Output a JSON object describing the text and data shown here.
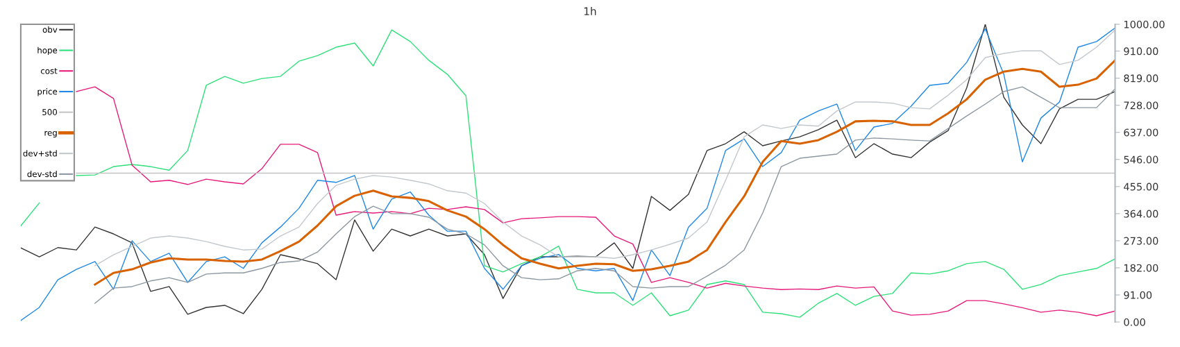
{
  "chart_data": {
    "type": "line",
    "title": "1h",
    "categories": [
      null,
      null,
      null,
      null,
      null,
      null,
      null,
      null,
      null,
      null,
      null,
      null,
      null,
      null,
      null,
      null,
      null,
      null,
      null,
      null,
      null,
      null,
      null,
      null,
      null,
      null,
      null,
      null,
      null,
      null,
      null,
      null,
      null,
      null,
      null,
      null,
      null,
      null,
      null,
      null,
      null,
      null,
      null,
      null,
      null,
      null,
      null,
      null,
      null,
      null,
      null,
      null,
      null,
      null,
      null,
      null,
      null,
      null,
      null,
      null
    ],
    "series": [
      {
        "name": "obv",
        "color": "#333333",
        "values": [
          249,
          219,
          250,
          242,
          319,
          296,
          266,
          103,
          119,
          26,
          49,
          56,
          28,
          110,
          226,
          212,
          196,
          142,
          343,
          238,
          312,
          289,
          312,
          289,
          296,
          226,
          79,
          189,
          219,
          219,
          221,
          219,
          266,
          180,
          422,
          375,
          429,
          576,
          599,
          639,
          592,
          608,
          622,
          646,
          678,
          552,
          599,
          564,
          552,
          604,
          643,
          786,
          1000,
          755,
          662,
          599,
          716,
          748,
          748,
          774
        ]
      },
      {
        "name": "hope",
        "color": "#2ee07a",
        "values": [
          323,
          400,
          null,
          492,
          494,
          522,
          529,
          522,
          510,
          576,
          795,
          825,
          802,
          818,
          825,
          876,
          895,
          923,
          937,
          860,
          981,
          942,
          879,
          832,
          760,
          189,
          168,
          196,
          219,
          255,
          110,
          98,
          98,
          56,
          98,
          21,
          40,
          126,
          138,
          126,
          33,
          28,
          16,
          63,
          96,
          56,
          86,
          96,
          165,
          161,
          172,
          196,
          203,
          177,
          110,
          126,
          156,
          168,
          180,
          212
        ]
      },
      {
        "name": "cost",
        "color": "#e6197a",
        "values": [
          null,
          null,
          null,
          774,
          790,
          751,
          527,
          471,
          476,
          462,
          480,
          471,
          464,
          515,
          597,
          597,
          569,
          359,
          371,
          366,
          371,
          364,
          382,
          378,
          387,
          378,
          333,
          347,
          350,
          354,
          354,
          352,
          289,
          262,
          133,
          149,
          133,
          114,
          130,
          121,
          114,
          109,
          111,
          109,
          121,
          114,
          118,
          37,
          23,
          26,
          37,
          72,
          72,
          61,
          48,
          33,
          40,
          33,
          21,
          37
        ]
      },
      {
        "name": "price",
        "color": "#1e88e5",
        "values": [
          5,
          49,
          142,
          177,
          203,
          110,
          273,
          203,
          231,
          133,
          203,
          219,
          180,
          266,
          319,
          382,
          476,
          469,
          492,
          312,
          413,
          437,
          359,
          305,
          305,
          180,
          110,
          189,
          214,
          227,
          180,
          172,
          180,
          72,
          242,
          156,
          319,
          382,
          576,
          615,
          522,
          569,
          678,
          709,
          732,
          576,
          655,
          667,
          725,
          795,
          802,
          872,
          985,
          832,
          538,
          685,
          739,
          923,
          942,
          988
        ]
      },
      {
        "name": "500",
        "color": "#c4c4c4",
        "values": [
          null,
          null,
          null,
          500,
          500,
          500,
          500,
          500,
          500,
          500,
          500,
          500,
          500,
          500,
          500,
          500,
          500,
          500,
          500,
          500,
          500,
          500,
          500,
          500,
          500,
          500,
          500,
          500,
          500,
          500,
          500,
          500,
          500,
          500,
          500,
          500,
          500,
          500,
          500,
          500,
          500,
          500,
          500,
          500,
          500,
          500,
          500,
          500,
          500,
          500,
          500,
          500,
          500,
          500,
          500,
          500,
          500,
          500,
          500,
          500
        ]
      },
      {
        "name": "reg",
        "color": "#d96200",
        "values": [
          null,
          null,
          null,
          null,
          126,
          165,
          177,
          200,
          214,
          210,
          210,
          205,
          203,
          210,
          238,
          270,
          324,
          389,
          424,
          441,
          422,
          417,
          406,
          375,
          354,
          312,
          259,
          214,
          196,
          180,
          189,
          196,
          194,
          172,
          177,
          189,
          203,
          242,
          336,
          422,
          538,
          608,
          599,
          611,
          639,
          674,
          676,
          674,
          662,
          662,
          701,
          748,
          814,
          841,
          850,
          841,
          790,
          797,
          818,
          879
        ]
      },
      {
        "name": "dev+std",
        "color": "#c3c8cd",
        "values": [
          null,
          null,
          null,
          null,
          189,
          226,
          254,
          282,
          289,
          282,
          270,
          254,
          242,
          245,
          289,
          319,
          398,
          459,
          480,
          492,
          487,
          476,
          464,
          441,
          433,
          398,
          336,
          289,
          259,
          219,
          219,
          219,
          214,
          226,
          242,
          261,
          282,
          336,
          476,
          622,
          662,
          650,
          662,
          658,
          709,
          739,
          739,
          735,
          720,
          716,
          762,
          814,
          888,
          902,
          911,
          911,
          865,
          879,
          923,
          981
        ]
      },
      {
        "name": "dev-std",
        "color": "#8d97a1",
        "values": [
          null,
          null,
          null,
          null,
          63,
          114,
          119,
          138,
          149,
          133,
          161,
          165,
          165,
          180,
          200,
          205,
          235,
          296,
          354,
          389,
          364,
          364,
          352,
          312,
          296,
          259,
          189,
          149,
          142,
          145,
          172,
          180,
          172,
          119,
          114,
          119,
          119,
          154,
          191,
          242,
          366,
          522,
          550,
          557,
          564,
          611,
          618,
          615,
          611,
          608,
          650,
          692,
          732,
          774,
          790,
          755,
          720,
          720,
          720,
          783
        ]
      }
    ],
    "ylim": [
      0,
      1000
    ],
    "yticks": [
      {
        "value": 0,
        "label": "0.00"
      },
      {
        "value": 91,
        "label": "91.00"
      },
      {
        "value": 182,
        "label": "182.00"
      },
      {
        "value": 273,
        "label": "273.00"
      },
      {
        "value": 364,
        "label": "364.00"
      },
      {
        "value": 455,
        "label": "455.00"
      },
      {
        "value": 546,
        "label": "546.00"
      },
      {
        "value": 637,
        "label": "637.00"
      },
      {
        "value": 728,
        "label": "728.00"
      },
      {
        "value": 819,
        "label": "819.00"
      },
      {
        "value": 910,
        "label": "910.00"
      },
      {
        "value": 1000,
        "label": "1000.00"
      }
    ],
    "legend": "top left"
  }
}
